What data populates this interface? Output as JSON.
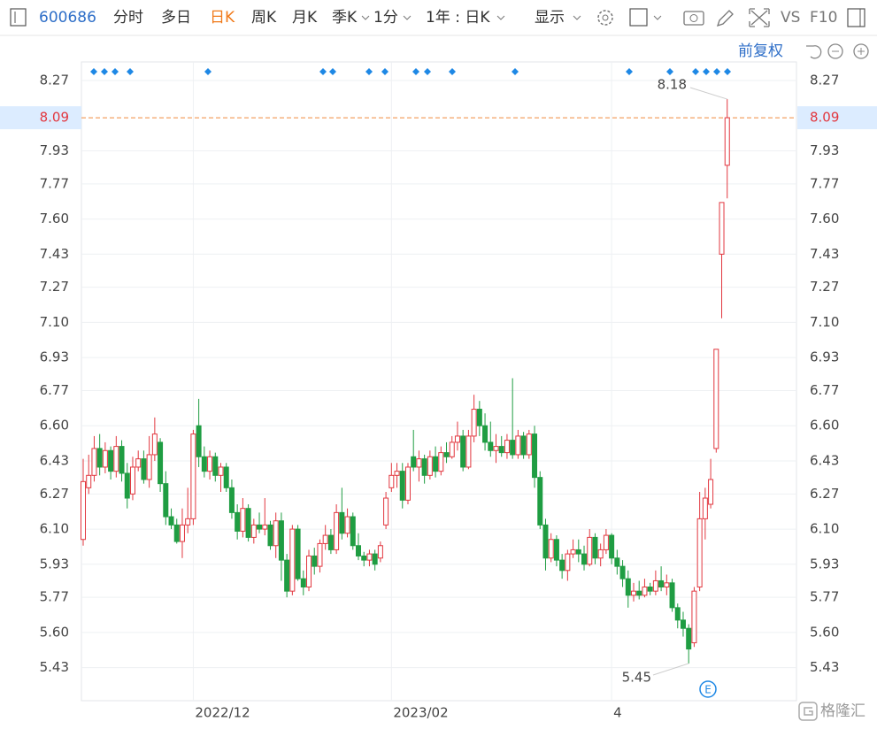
{
  "toolbar": {
    "code": "600686",
    "tabs": [
      "分时",
      "多日",
      "日K",
      "周K",
      "月K",
      "季K"
    ],
    "period": "1分",
    "range": "1年 : 日K",
    "display": "显示",
    "vs": "VS",
    "f10": "F10",
    "adjust": "前复权"
  },
  "watermark": "格隆汇",
  "chart_data": {
    "type": "candlestick",
    "colors": {
      "up": "#e2373f",
      "down": "#1f9d42"
    },
    "ylim": [
      5.27,
      8.36
    ],
    "yticks": [
      8.27,
      7.93,
      7.77,
      {
        "value": 7.6,
        "label": "7.60"
      },
      7.43,
      7.27,
      {
        "value": 7.1,
        "label": "7.10"
      },
      6.93,
      6.77,
      {
        "value": 6.6,
        "label": "6.60"
      },
      6.43,
      6.27,
      {
        "value": 6.1,
        "label": "6.10"
      },
      5.93,
      5.77,
      {
        "value": 5.6,
        "label": "5.60"
      },
      5.43
    ],
    "price_line": 8.09,
    "max_label": 8.18,
    "min_label": 5.45,
    "event_marker": "E",
    "grid": true,
    "categories": [
      null,
      null,
      null,
      null,
      null,
      null,
      null,
      null,
      null,
      null,
      null,
      null,
      null,
      null,
      null,
      null,
      null,
      null,
      null,
      null,
      "2022/12",
      null,
      null,
      null,
      null,
      null,
      null,
      null,
      null,
      null,
      null,
      null,
      null,
      null,
      null,
      null,
      null,
      null,
      null,
      null,
      null,
      null,
      null,
      null,
      null,
      null,
      null,
      null,
      null,
      null,
      null,
      null,
      null,
      null,
      null,
      null,
      "2023/02",
      null,
      null,
      null,
      null,
      null,
      null,
      null,
      null,
      null,
      null,
      null,
      null,
      null,
      null,
      null,
      null,
      null,
      null,
      null,
      null,
      null,
      null,
      null,
      null,
      null,
      null,
      null,
      null,
      null,
      null,
      null,
      null,
      null,
      null,
      null,
      null,
      null,
      null,
      null,
      "4",
      null,
      null,
      null,
      null,
      null,
      null,
      null,
      null,
      null,
      null,
      null,
      null,
      null,
      null,
      null,
      null,
      null,
      null,
      null,
      null,
      null
    ],
    "open": [
      6.05,
      6.3,
      6.36,
      6.49,
      6.4,
      6.48,
      6.38,
      6.5,
      6.37,
      6.27,
      6.4,
      6.44,
      6.34,
      6.46,
      6.52,
      6.32,
      6.16,
      6.12,
      6.04,
      6.12,
      6.15,
      6.6,
      6.45,
      6.38,
      6.45,
      6.36,
      6.4,
      6.3,
      6.18,
      6.09,
      6.2,
      6.06,
      6.12,
      6.1,
      6.12,
      6.02,
      6.14,
      5.95,
      5.8,
      6.1,
      5.86,
      5.82,
      5.97,
      5.92,
      6.03,
      6.07,
      6.0,
      6.18,
      6.08,
      6.16,
      6.02,
      5.97,
      5.95,
      5.98,
      5.96,
      6.12,
      6.3,
      6.36,
      6.38,
      6.24,
      6.45,
      6.4,
      6.44,
      6.36,
      6.45,
      6.38,
      6.47,
      6.45,
      6.52,
      6.55,
      6.4,
      6.55,
      6.68,
      6.6,
      6.52,
      6.48,
      6.5,
      6.47,
      6.53,
      6.46,
      6.55,
      6.46,
      6.56,
      6.35,
      6.12,
      5.96,
      6.05,
      5.95,
      5.9,
      5.98,
      6.0,
      5.98,
      5.93,
      6.06,
      5.96,
      6.0,
      6.07,
      5.96,
      5.92,
      5.86,
      5.78,
      5.8,
      5.78,
      5.82,
      5.8,
      5.85,
      5.82,
      5.84,
      5.72,
      5.66,
      5.62,
      5.55,
      5.82,
      6.15,
      6.22,
      6.49,
      7.43,
      7.86
    ],
    "high": [
      6.44,
      6.46,
      6.55,
      6.56,
      6.52,
      6.5,
      6.55,
      6.53,
      6.42,
      6.45,
      6.48,
      6.48,
      6.55,
      6.64,
      6.54,
      6.38,
      6.2,
      6.15,
      6.2,
      6.3,
      6.58,
      6.73,
      6.5,
      6.48,
      6.47,
      6.42,
      6.42,
      6.34,
      6.22,
      6.25,
      6.22,
      6.15,
      6.18,
      6.25,
      6.14,
      6.18,
      6.18,
      5.98,
      6.12,
      6.12,
      5.9,
      6.0,
      6.01,
      6.05,
      6.12,
      6.1,
      6.22,
      6.3,
      6.2,
      6.18,
      6.08,
      5.99,
      6.0,
      6.0,
      6.04,
      6.28,
      6.42,
      6.42,
      6.42,
      6.42,
      6.58,
      6.48,
      6.46,
      6.48,
      6.5,
      6.5,
      6.52,
      6.55,
      6.62,
      6.58,
      6.58,
      6.75,
      6.72,
      6.66,
      6.62,
      6.56,
      6.55,
      6.56,
      6.83,
      6.58,
      6.57,
      6.58,
      6.6,
      6.38,
      6.15,
      6.08,
      6.07,
      5.98,
      6.0,
      6.05,
      6.05,
      6.02,
      6.1,
      6.08,
      6.03,
      6.1,
      6.08,
      6.0,
      5.95,
      5.9,
      5.84,
      5.85,
      5.86,
      5.84,
      5.9,
      5.92,
      5.88,
      5.86,
      5.74,
      5.7,
      5.64,
      5.82,
      6.28,
      6.3,
      6.44,
      6.97,
      7.68,
      8.18
    ],
    "low": [
      6.02,
      6.27,
      6.33,
      6.36,
      6.37,
      6.34,
      6.35,
      6.33,
      6.2,
      6.24,
      6.38,
      6.32,
      6.3,
      6.43,
      6.28,
      6.12,
      6.1,
      6.03,
      5.96,
      6.08,
      6.12,
      6.4,
      6.35,
      6.34,
      6.33,
      6.28,
      6.28,
      6.15,
      6.05,
      6.06,
      6.04,
      6.03,
      6.08,
      6.07,
      6.0,
      5.96,
      5.85,
      5.77,
      5.78,
      5.85,
      5.78,
      5.8,
      5.88,
      5.89,
      6.0,
      5.98,
      5.98,
      6.05,
      6.06,
      6.0,
      5.95,
      5.92,
      5.92,
      5.9,
      5.94,
      6.1,
      6.28,
      6.3,
      6.2,
      6.22,
      6.38,
      6.33,
      6.32,
      6.34,
      6.35,
      6.36,
      6.42,
      6.44,
      6.48,
      6.38,
      6.39,
      6.52,
      6.55,
      6.48,
      6.45,
      6.42,
      6.45,
      6.44,
      6.44,
      6.44,
      6.44,
      6.44,
      6.3,
      6.1,
      5.9,
      5.94,
      5.92,
      5.86,
      5.85,
      5.96,
      5.94,
      5.9,
      5.92,
      5.93,
      5.92,
      5.98,
      5.93,
      5.88,
      5.82,
      5.72,
      5.75,
      5.76,
      5.77,
      5.78,
      5.78,
      5.8,
      5.78,
      5.7,
      5.62,
      5.58,
      5.45,
      5.53,
      5.8,
      6.05,
      6.2,
      6.47,
      7.12,
      7.7
    ],
    "close": [
      6.33,
      6.36,
      6.49,
      6.4,
      6.48,
      6.38,
      6.5,
      6.37,
      6.25,
      6.4,
      6.44,
      6.34,
      6.46,
      6.56,
      6.32,
      6.16,
      6.12,
      6.04,
      6.12,
      6.15,
      6.56,
      6.45,
      6.38,
      6.45,
      6.36,
      6.4,
      6.3,
      6.18,
      6.09,
      6.2,
      6.06,
      6.12,
      6.1,
      6.12,
      6.02,
      6.14,
      5.95,
      5.8,
      6.1,
      5.86,
      5.82,
      5.97,
      5.92,
      6.03,
      6.07,
      6.0,
      6.18,
      6.08,
      6.16,
      6.02,
      5.97,
      5.95,
      5.98,
      5.93,
      6.02,
      6.25,
      6.36,
      6.38,
      6.24,
      6.4,
      6.4,
      6.44,
      6.36,
      6.45,
      6.38,
      6.47,
      6.45,
      6.52,
      6.55,
      6.4,
      6.55,
      6.68,
      6.6,
      6.52,
      6.48,
      6.5,
      6.47,
      6.53,
      6.46,
      6.55,
      6.46,
      6.56,
      6.35,
      6.12,
      5.96,
      6.05,
      5.95,
      5.9,
      5.98,
      6.0,
      5.98,
      5.93,
      6.06,
      5.96,
      6.0,
      6.07,
      5.96,
      5.92,
      5.86,
      5.78,
      5.8,
      5.78,
      5.82,
      5.8,
      5.85,
      5.82,
      5.84,
      5.72,
      5.66,
      5.62,
      5.52,
      5.8,
      6.15,
      6.25,
      6.34,
      6.97,
      7.68,
      8.09
    ]
  }
}
